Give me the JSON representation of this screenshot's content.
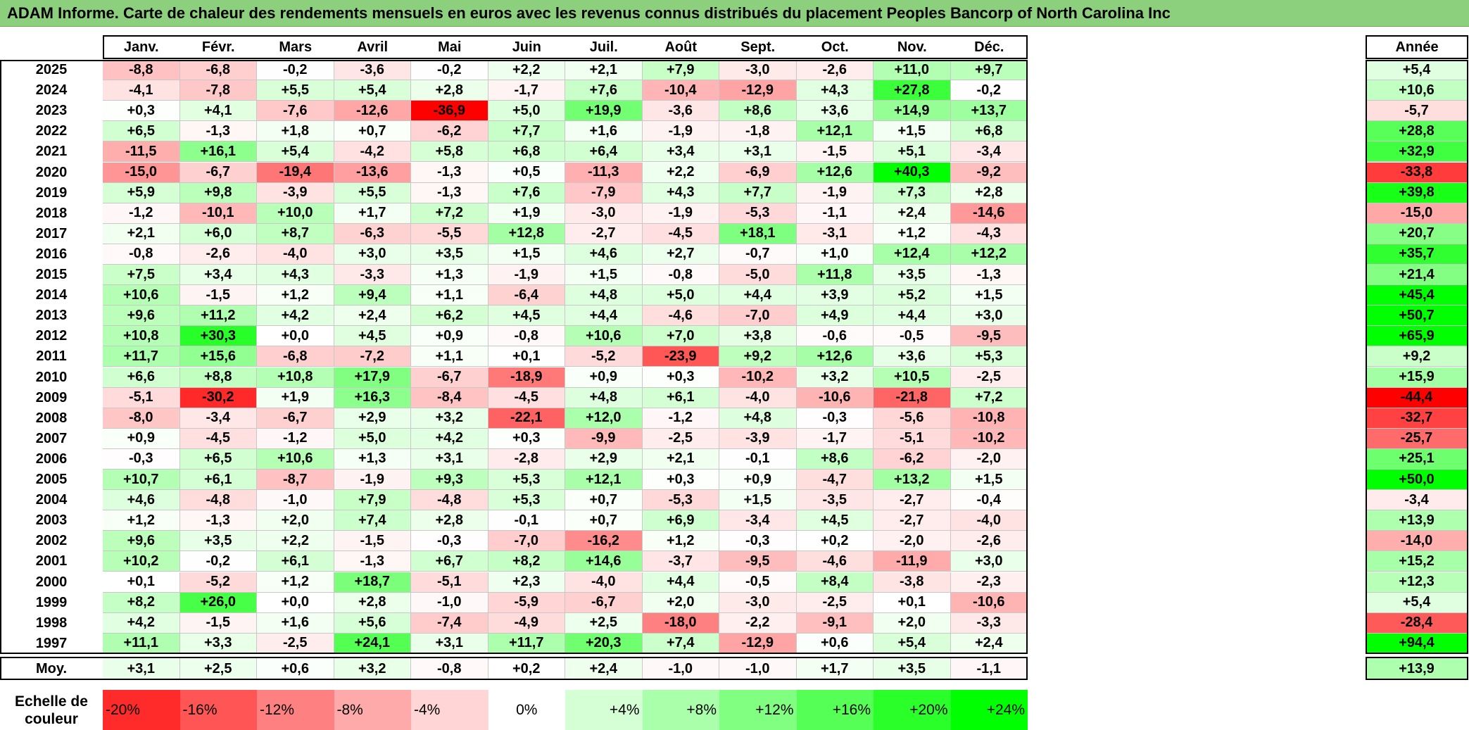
{
  "title": "ADAM Informe. Carte de chaleur des rendements mensuels en euros avec les revenus connus distribués du placement Peoples Bancorp of North Carolina Inc",
  "chart_data": {
    "type": "heatmap",
    "columns": [
      "Janv.",
      "Févr.",
      "Mars",
      "Avril",
      "Mai",
      "Juin",
      "Juil.",
      "Août",
      "Sept.",
      "Oct.",
      "Nov.",
      "Déc."
    ],
    "annual_header": "Année",
    "rows": [
      {
        "year": "2025",
        "values": [
          "-8,8",
          "-6,8",
          "-0,2",
          "-3,6",
          "-0,2",
          "+2,2",
          "+2,1",
          "+7,9",
          "-3,0",
          "-2,6",
          "+11,0",
          "+9,7"
        ],
        "annual": "+5,4"
      },
      {
        "year": "2024",
        "values": [
          "-4,1",
          "-7,8",
          "+5,5",
          "+5,4",
          "+2,8",
          "-1,7",
          "+7,6",
          "-10,4",
          "-12,9",
          "+4,3",
          "+27,8",
          "-0,2"
        ],
        "annual": "+10,6"
      },
      {
        "year": "2023",
        "values": [
          "+0,3",
          "+4,1",
          "-7,6",
          "-12,6",
          "-36,9",
          "+5,0",
          "+19,9",
          "-3,6",
          "+8,6",
          "+3,6",
          "+14,9",
          "+13,7"
        ],
        "annual": "-5,7"
      },
      {
        "year": "2022",
        "values": [
          "+6,5",
          "-1,3",
          "+1,8",
          "+0,7",
          "-6,2",
          "+7,7",
          "+1,6",
          "-1,9",
          "-1,8",
          "+12,1",
          "+1,5",
          "+6,8"
        ],
        "annual": "+28,8"
      },
      {
        "year": "2021",
        "values": [
          "-11,5",
          "+16,1",
          "+5,4",
          "-4,2",
          "+5,8",
          "+6,8",
          "+6,4",
          "+3,4",
          "+3,1",
          "-1,5",
          "+5,1",
          "-3,4"
        ],
        "annual": "+32,9"
      },
      {
        "year": "2020",
        "values": [
          "-15,0",
          "-6,7",
          "-19,4",
          "-13,6",
          "-1,3",
          "+0,5",
          "-11,3",
          "+2,2",
          "-6,9",
          "+12,6",
          "+40,3",
          "-9,2"
        ],
        "annual": "-33,8"
      },
      {
        "year": "2019",
        "values": [
          "+5,9",
          "+9,8",
          "-3,9",
          "+5,5",
          "-1,3",
          "+7,6",
          "-7,9",
          "+4,3",
          "+7,7",
          "-1,9",
          "+7,3",
          "+2,8"
        ],
        "annual": "+39,8"
      },
      {
        "year": "2018",
        "values": [
          "-1,2",
          "-10,1",
          "+10,0",
          "+1,7",
          "+7,2",
          "+1,9",
          "-3,0",
          "-1,9",
          "-5,3",
          "-1,1",
          "+2,4",
          "-14,6"
        ],
        "annual": "-15,0"
      },
      {
        "year": "2017",
        "values": [
          "+2,1",
          "+6,0",
          "+8,7",
          "-6,3",
          "-5,5",
          "+12,8",
          "-2,7",
          "-4,5",
          "+18,1",
          "-3,1",
          "+1,2",
          "-4,3"
        ],
        "annual": "+20,7"
      },
      {
        "year": "2016",
        "values": [
          "-0,8",
          "-2,6",
          "-4,0",
          "+3,0",
          "+3,5",
          "+1,5",
          "+4,6",
          "+2,7",
          "-0,7",
          "+1,0",
          "+12,4",
          "+12,2"
        ],
        "annual": "+35,7"
      },
      {
        "year": "2015",
        "values": [
          "+7,5",
          "+3,4",
          "+4,3",
          "-3,3",
          "+1,3",
          "-1,9",
          "+1,5",
          "-0,8",
          "-5,0",
          "+11,8",
          "+3,5",
          "-1,3"
        ],
        "annual": "+21,4"
      },
      {
        "year": "2014",
        "values": [
          "+10,6",
          "-1,5",
          "+1,2",
          "+9,4",
          "+1,1",
          "-6,4",
          "+4,8",
          "+5,0",
          "+4,4",
          "+3,9",
          "+5,2",
          "+1,5"
        ],
        "annual": "+45,4"
      },
      {
        "year": "2013",
        "values": [
          "+9,6",
          "+11,2",
          "+4,2",
          "+2,4",
          "+6,2",
          "+4,5",
          "+4,4",
          "-4,6",
          "-7,0",
          "+4,9",
          "+4,4",
          "+3,0"
        ],
        "annual": "+50,7"
      },
      {
        "year": "2012",
        "values": [
          "+10,8",
          "+30,3",
          "+0,0",
          "+4,5",
          "+0,9",
          "-0,8",
          "+10,6",
          "+7,0",
          "+3,8",
          "-0,6",
          "-0,5",
          "-9,5"
        ],
        "annual": "+65,9"
      },
      {
        "year": "2011",
        "values": [
          "+11,7",
          "+15,6",
          "-6,8",
          "-7,2",
          "+1,1",
          "+0,1",
          "-5,2",
          "-23,9",
          "+9,2",
          "+12,6",
          "+3,6",
          "+5,3"
        ],
        "annual": "+9,2"
      },
      {
        "year": "2010",
        "values": [
          "+6,6",
          "+8,8",
          "+10,8",
          "+17,9",
          "-6,7",
          "-18,9",
          "+0,9",
          "+0,3",
          "-10,2",
          "+3,2",
          "+10,5",
          "-2,5"
        ],
        "annual": "+15,9"
      },
      {
        "year": "2009",
        "values": [
          "-5,1",
          "-30,2",
          "+1,9",
          "+16,3",
          "-8,4",
          "-4,5",
          "+4,8",
          "+6,1",
          "-4,0",
          "-10,6",
          "-21,8",
          "+7,2"
        ],
        "annual": "-44,4"
      },
      {
        "year": "2008",
        "values": [
          "-8,0",
          "-3,4",
          "-6,7",
          "+2,9",
          "+3,2",
          "-22,1",
          "+12,0",
          "-1,2",
          "+4,8",
          "-0,3",
          "-5,6",
          "-10,8"
        ],
        "annual": "-32,7"
      },
      {
        "year": "2007",
        "values": [
          "+0,9",
          "-4,5",
          "-1,2",
          "+5,0",
          "+4,2",
          "+0,3",
          "-9,9",
          "-2,5",
          "-3,9",
          "-1,7",
          "-5,1",
          "-10,2"
        ],
        "annual": "-25,7"
      },
      {
        "year": "2006",
        "values": [
          "-0,3",
          "+6,5",
          "+10,6",
          "+1,3",
          "+3,1",
          "-2,8",
          "+2,9",
          "+2,1",
          "-0,1",
          "+8,6",
          "-6,2",
          "-2,0"
        ],
        "annual": "+25,1"
      },
      {
        "year": "2005",
        "values": [
          "+10,7",
          "+6,1",
          "-8,7",
          "-1,9",
          "+9,3",
          "+5,3",
          "+12,1",
          "+0,3",
          "+0,9",
          "-4,7",
          "+13,2",
          "+1,5"
        ],
        "annual": "+50,0"
      },
      {
        "year": "2004",
        "values": [
          "+4,6",
          "-4,8",
          "-1,0",
          "+7,9",
          "-4,8",
          "+5,3",
          "+0,7",
          "-5,3",
          "+1,5",
          "-3,5",
          "-2,7",
          "-0,4"
        ],
        "annual": "-3,4"
      },
      {
        "year": "2003",
        "values": [
          "+1,2",
          "-1,3",
          "+2,0",
          "+7,4",
          "+2,8",
          "-0,1",
          "+0,7",
          "+6,9",
          "-3,4",
          "+4,5",
          "-2,7",
          "-4,0"
        ],
        "annual": "+13,9"
      },
      {
        "year": "2002",
        "values": [
          "+9,6",
          "+3,5",
          "+2,2",
          "-1,5",
          "-0,3",
          "-7,0",
          "-16,2",
          "+1,2",
          "-0,3",
          "+0,2",
          "-2,0",
          "-2,6"
        ],
        "annual": "-14,0"
      },
      {
        "year": "2001",
        "values": [
          "+10,2",
          "-0,2",
          "+6,1",
          "-1,3",
          "+6,7",
          "+8,2",
          "+14,6",
          "-3,7",
          "-9,5",
          "-4,6",
          "-11,9",
          "+3,0"
        ],
        "annual": "+15,2"
      },
      {
        "year": "2000",
        "values": [
          "+0,1",
          "-5,2",
          "+1,2",
          "+18,7",
          "-5,1",
          "+2,3",
          "-4,0",
          "+4,4",
          "-0,5",
          "+8,4",
          "-3,8",
          "-2,3"
        ],
        "annual": "+12,3"
      },
      {
        "year": "1999",
        "values": [
          "+8,2",
          "+26,0",
          "+0,0",
          "+2,8",
          "-1,0",
          "-5,9",
          "-6,7",
          "+2,0",
          "-3,0",
          "-2,5",
          "+0,1",
          "-10,6"
        ],
        "annual": "+5,4"
      },
      {
        "year": "1998",
        "values": [
          "+4,2",
          "-1,5",
          "+1,6",
          "+5,6",
          "-7,4",
          "-4,9",
          "+2,5",
          "-18,0",
          "-2,2",
          "-9,1",
          "+2,0",
          "-3,3"
        ],
        "annual": "-28,4"
      },
      {
        "year": "1997",
        "values": [
          "+11,1",
          "+3,3",
          "-2,5",
          "+24,1",
          "+3,1",
          "+11,7",
          "+20,3",
          "+7,4",
          "-12,9",
          "+0,6",
          "+5,4",
          "+2,4"
        ],
        "annual": "+94,4"
      }
    ],
    "average": {
      "label": "Moy.",
      "values": [
        "+3,1",
        "+2,5",
        "+0,6",
        "+3,2",
        "-0,8",
        "+0,2",
        "+2,4",
        "-1,0",
        "-1,0",
        "+1,7",
        "+3,5",
        "-1,1"
      ],
      "annual": "+13,9"
    },
    "legend": {
      "label_line1": "Echelle de",
      "label_line2": "couleur",
      "items": [
        {
          "label": "-20%",
          "value": -20
        },
        {
          "label": "-16%",
          "value": -16
        },
        {
          "label": "-12%",
          "value": -12
        },
        {
          "label": "-8%",
          "value": -8
        },
        {
          "label": "-4%",
          "value": -4
        },
        {
          "label": "0%",
          "value": 0
        },
        {
          "label": "+4%",
          "value": 4
        },
        {
          "label": "+8%",
          "value": 8
        },
        {
          "label": "+12%",
          "value": 12
        },
        {
          "label": "+16%",
          "value": 16
        },
        {
          "label": "+20%",
          "value": 20
        },
        {
          "label": "+24%",
          "value": 24
        }
      ]
    },
    "colors": {
      "negative_max": "#ff0000",
      "neutral": "#ffffff",
      "positive_max": "#00ff00",
      "title_bg": "#8ccf7c"
    }
  }
}
